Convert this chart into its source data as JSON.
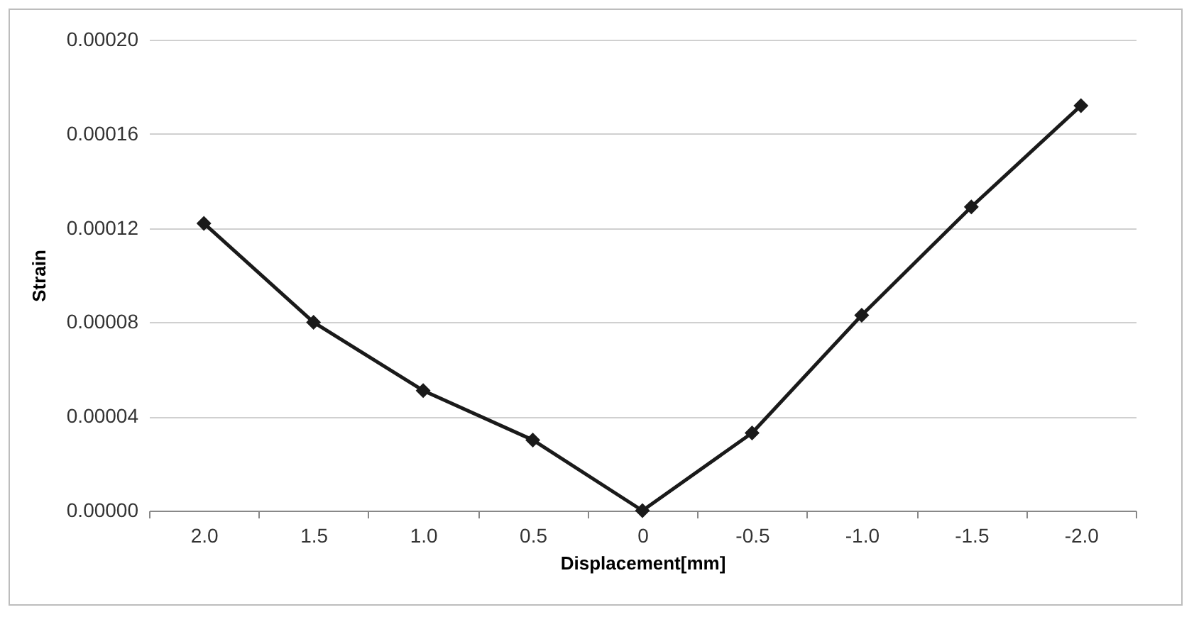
{
  "chart_data": {
    "type": "line",
    "xlabel": "Displacement[mm]",
    "ylabel": "Strain",
    "categories": [
      "2.0",
      "1.5",
      "1.0",
      "0.5",
      "0",
      "-0.5",
      "-1.0",
      "-1.5",
      "-2.0"
    ],
    "series": [
      {
        "color": "#1a1a1a",
        "values": [
          0.000122,
          8e-05,
          5.1e-05,
          3e-05,
          0.0,
          3.3e-05,
          8.3e-05,
          0.000129,
          0.000172
        ]
      }
    ],
    "ylim": [
      0,
      0.0002
    ],
    "yticks": [
      {
        "value": 0,
        "label": "0.00000"
      },
      {
        "value": 4e-05,
        "label": "0.00004"
      },
      {
        "value": 8e-05,
        "label": "0.00008"
      },
      {
        "value": 0.00012,
        "label": "0.00012"
      },
      {
        "value": 0.00016,
        "label": "0.00016"
      },
      {
        "value": 0.0002,
        "label": "0.00020"
      }
    ],
    "grid": "y",
    "marker": "diamond",
    "line_style": "solid"
  }
}
